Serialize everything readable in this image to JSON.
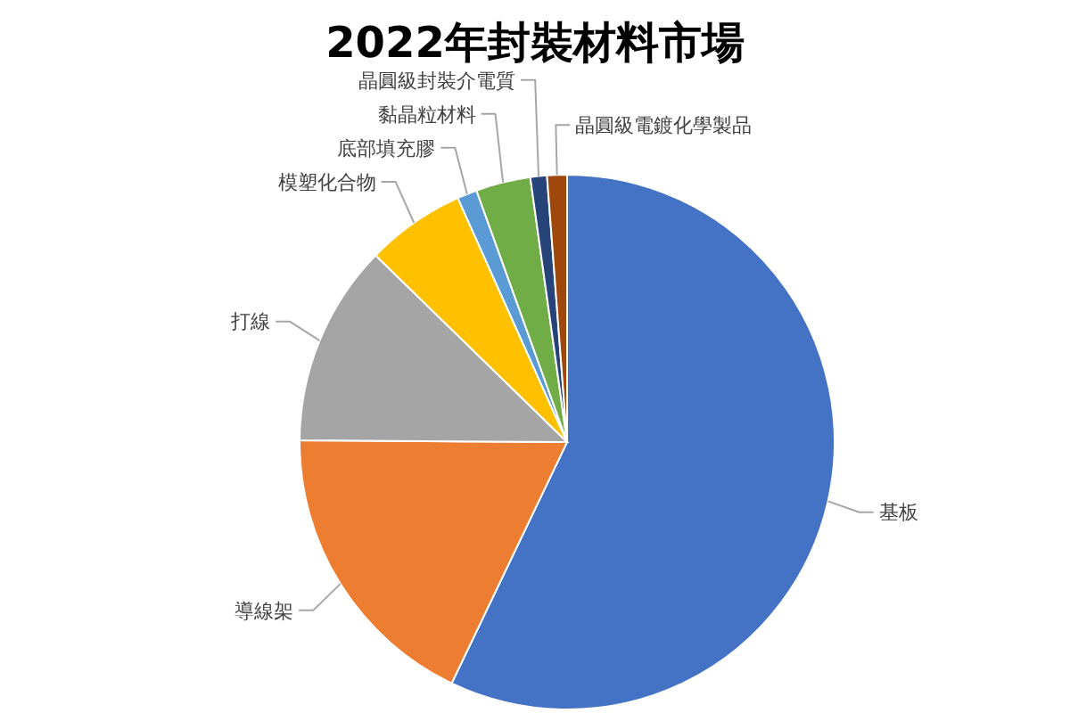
{
  "chart_data": {
    "type": "pie",
    "title": "2022年封裝材料市場",
    "categories": [
      "基板",
      "導線架",
      "打線",
      "模塑化合物",
      "底部填充膠",
      "黏晶粒材料",
      "晶圓級封裝介電質",
      "晶圓級電鍍化學製品"
    ],
    "values": [
      57.1,
      18,
      12.2,
      6,
      1.2,
      3.3,
      1,
      1.2
    ],
    "colors": [
      "#4472c4",
      "#ed7d31",
      "#a5a5a5",
      "#ffc000",
      "#5b9bd5",
      "#70ad47",
      "#264478",
      "#9e480e"
    ],
    "legend": false
  }
}
